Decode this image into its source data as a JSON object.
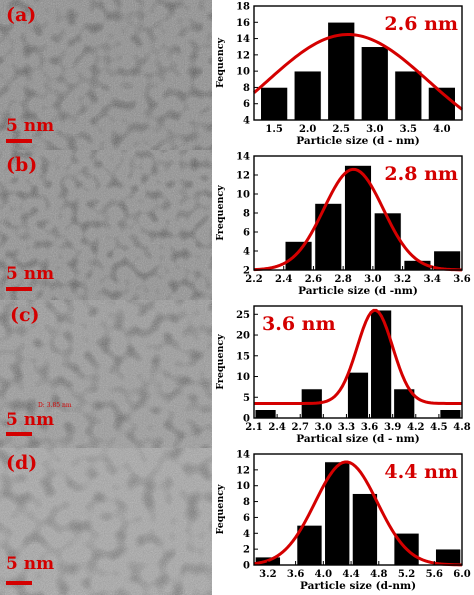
{
  "colors": {
    "bar": "#000000",
    "fit": "#d40000",
    "label": "#d40000"
  },
  "panels": [
    {
      "tem_label": "(a)",
      "scale_label": "5 nm",
      "annotation": ""
    },
    {
      "tem_label": "(b)",
      "scale_label": "5 nm",
      "annotation": ""
    },
    {
      "tem_label": "(c)",
      "scale_label": "5 nm",
      "annotation": "D: 3.85 nm"
    },
    {
      "tem_label": "(d)",
      "scale_label": "5 nm",
      "annotation": ""
    }
  ],
  "chart_data": [
    {
      "type": "bar",
      "title": "2.6 nm",
      "xlabel": "Particle size (d - nm)",
      "ylabel": "Fequency",
      "xlim": [
        1.2,
        4.3
      ],
      "ylim": [
        4,
        18
      ],
      "xticks": [
        1.5,
        2.0,
        2.5,
        3.0,
        3.5,
        4.0
      ],
      "xtick_labels": [
        "1.5",
        "2.0",
        "2.5",
        "3.0",
        "3.5",
        "4.0"
      ],
      "yticks": [
        4,
        6,
        8,
        10,
        12,
        14,
        16,
        18
      ],
      "bar_width": 0.4,
      "bars": [
        {
          "x": 1.5,
          "y": 8
        },
        {
          "x": 2.0,
          "y": 10
        },
        {
          "x": 2.5,
          "y": 16
        },
        {
          "x": 3.0,
          "y": 13
        },
        {
          "x": 3.5,
          "y": 10
        },
        {
          "x": 4.0,
          "y": 8
        }
      ],
      "fit": {
        "type": "gaussian",
        "center": 2.6,
        "peak": 14.5,
        "base": 0,
        "sigma": 1.2
      },
      "label_pos": "top-right"
    },
    {
      "type": "bar",
      "title": "2.8 nm",
      "xlabel": "Particle size (d -nm)",
      "ylabel": "Frequency",
      "xlim": [
        2.2,
        3.6
      ],
      "ylim": [
        2,
        14
      ],
      "xticks": [
        2.2,
        2.4,
        2.6,
        2.8,
        3.0,
        3.2,
        3.4,
        3.6
      ],
      "xtick_labels": [
        "2.2",
        "2.4",
        "2.6",
        "2.8",
        "3.0",
        "3.2",
        "3.4",
        "3.6"
      ],
      "yticks": [
        2,
        4,
        6,
        8,
        10,
        12,
        14
      ],
      "bar_width": 0.18,
      "bars": [
        {
          "x": 2.3,
          "y": 2
        },
        {
          "x": 2.5,
          "y": 5
        },
        {
          "x": 2.7,
          "y": 9
        },
        {
          "x": 2.9,
          "y": 13
        },
        {
          "x": 3.1,
          "y": 8
        },
        {
          "x": 3.3,
          "y": 3
        },
        {
          "x": 3.5,
          "y": 4
        }
      ],
      "fit": {
        "type": "gaussian",
        "center": 2.87,
        "peak": 12.6,
        "base": 2,
        "sigma": 0.2
      },
      "label_pos": "top-right"
    },
    {
      "type": "bar",
      "title": "3.6 nm",
      "xlabel": "Partical size (d - nm)",
      "ylabel": "Frequency",
      "xlim": [
        2.1,
        4.8
      ],
      "ylim": [
        0,
        27
      ],
      "xticks": [
        2.1,
        2.4,
        2.7,
        3.0,
        3.3,
        3.6,
        3.9,
        4.2,
        4.5,
        4.8
      ],
      "xtick_labels": [
        "2.1",
        "2.4",
        "2.7",
        "3.0",
        "3.3",
        "3.6",
        "3.9",
        "4.2",
        "4.5",
        "4.8"
      ],
      "yticks": [
        0,
        5,
        10,
        15,
        20,
        25
      ],
      "bar_width": 0.27,
      "bars": [
        {
          "x": 2.25,
          "y": 2
        },
        {
          "x": 2.85,
          "y": 7
        },
        {
          "x": 3.45,
          "y": 11
        },
        {
          "x": 3.75,
          "y": 26
        },
        {
          "x": 4.05,
          "y": 7
        },
        {
          "x": 4.65,
          "y": 2
        }
      ],
      "fit": {
        "type": "gaussian",
        "center": 3.67,
        "peak": 26,
        "base": 3.5,
        "sigma": 0.23
      },
      "label_pos": "top-left"
    },
    {
      "type": "bar",
      "title": "4.4 nm",
      "xlabel": "Particle size (d-nm)",
      "ylabel": "Fequency",
      "xlim": [
        3.0,
        6.0
      ],
      "ylim": [
        0,
        14
      ],
      "xticks": [
        3.2,
        3.6,
        4.0,
        4.4,
        4.8,
        5.2,
        5.6,
        6.0
      ],
      "xtick_labels": [
        "3.2",
        "3.6",
        "4.0",
        "4.4",
        "4.8",
        "5.2",
        "5.6",
        "6.0"
      ],
      "yticks": [
        0,
        2,
        4,
        6,
        8,
        10,
        12,
        14
      ],
      "bar_width": 0.36,
      "bars": [
        {
          "x": 3.2,
          "y": 1
        },
        {
          "x": 3.8,
          "y": 5
        },
        {
          "x": 4.2,
          "y": 13
        },
        {
          "x": 4.6,
          "y": 9
        },
        {
          "x": 5.2,
          "y": 4
        },
        {
          "x": 5.8,
          "y": 2
        }
      ],
      "fit": {
        "type": "gaussian",
        "center": 4.33,
        "peak": 13,
        "base": 0,
        "sigma": 0.45
      },
      "label_pos": "top-right"
    }
  ]
}
